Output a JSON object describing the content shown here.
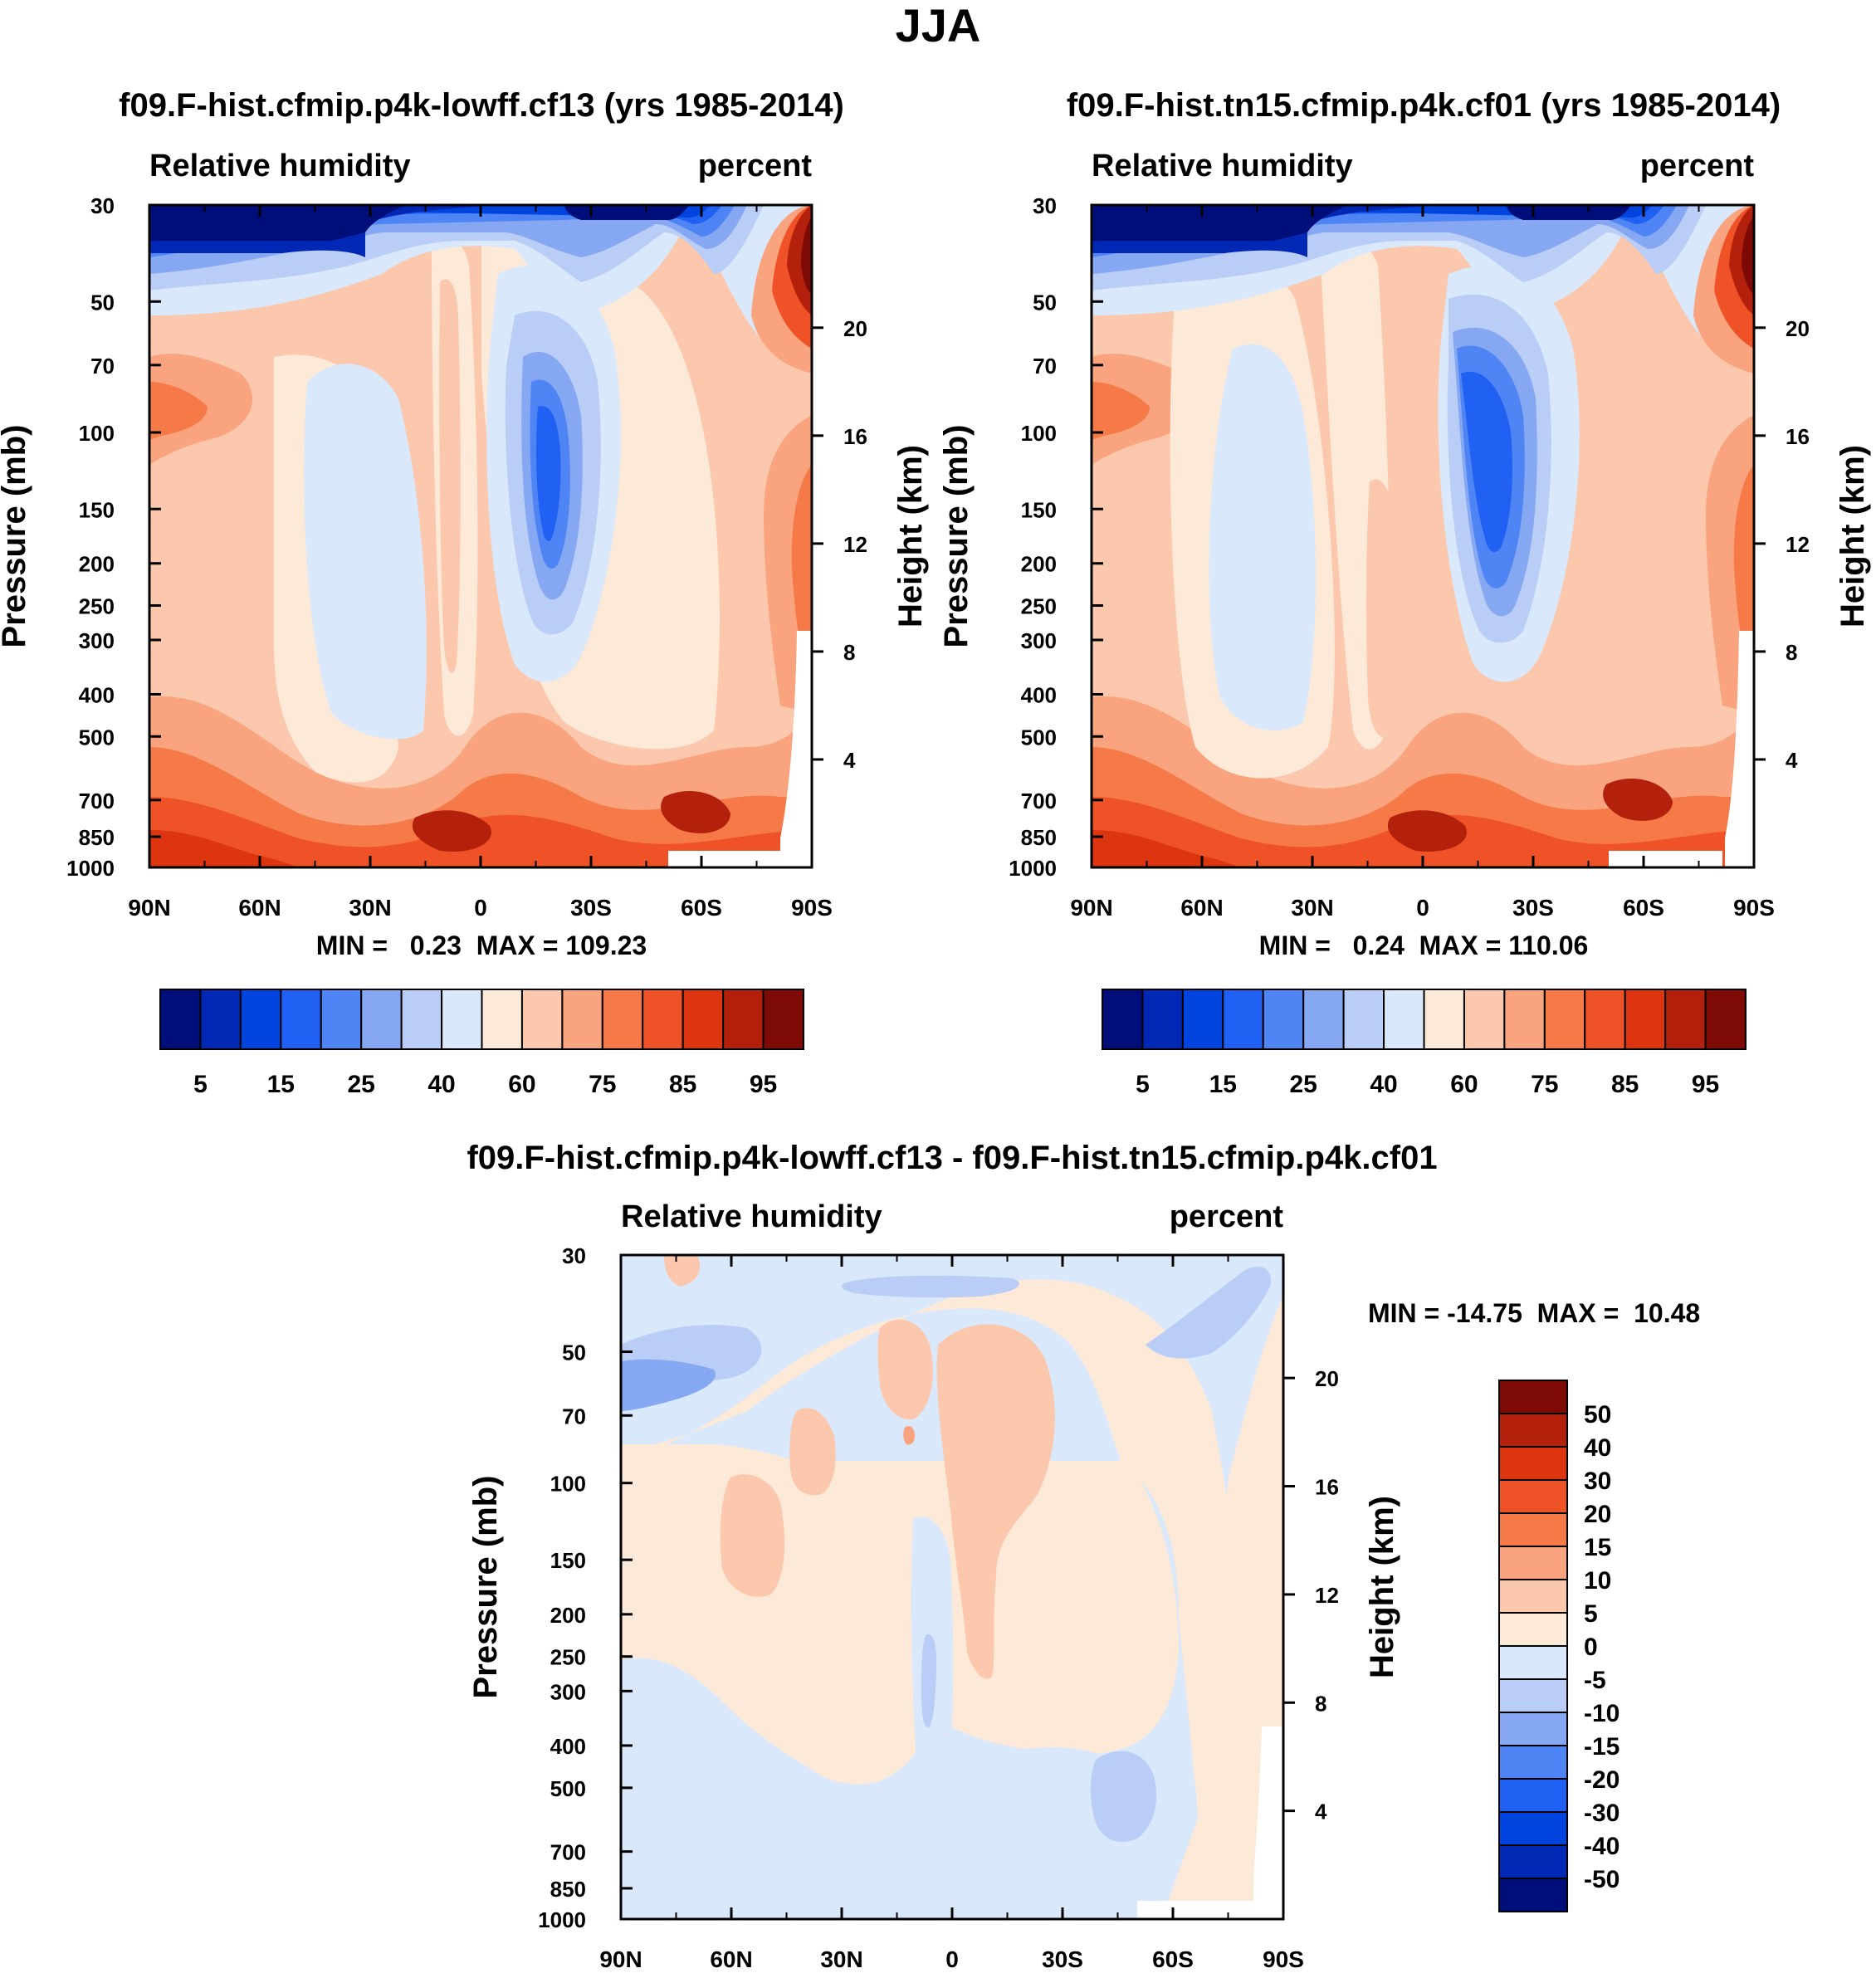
{
  "title": "JJA",
  "chart_data": [
    {
      "type": "heatmap",
      "title": "f09.F-hist.cfmip.p4k-lowff.cf13 (yrs 1985-2014)",
      "left_label": "Relative humidity",
      "right_label": "percent",
      "ylabel": "Pressure (mb)",
      "ylabel_right": "Height (km)",
      "x_ticks": [
        "90N",
        "60N",
        "30N",
        "0",
        "30S",
        "60S",
        "90S"
      ],
      "y_ticks": [
        "30",
        "50",
        "70",
        "100",
        "150",
        "200",
        "250",
        "300",
        "400",
        "500",
        "700",
        "850",
        "1000"
      ],
      "height_ticks": [
        "20",
        "16",
        "12",
        "8",
        "4"
      ],
      "stats": "MIN =   0.23  MAX = 109.23",
      "min": 0.23,
      "max": 109.23,
      "colorbar_labels": [
        "5",
        "15",
        "25",
        "40",
        "60",
        "75",
        "85",
        "95"
      ]
    },
    {
      "type": "heatmap",
      "title": "f09.F-hist.tn15.cfmip.p4k.cf01 (yrs 1985-2014)",
      "left_label": "Relative humidity",
      "right_label": "percent",
      "ylabel": "Pressure (mb)",
      "ylabel_right": "Height (km)",
      "x_ticks": [
        "90N",
        "60N",
        "30N",
        "0",
        "30S",
        "60S",
        "90S"
      ],
      "y_ticks": [
        "30",
        "50",
        "70",
        "100",
        "150",
        "200",
        "250",
        "300",
        "400",
        "500",
        "700",
        "850",
        "1000"
      ],
      "height_ticks": [
        "20",
        "16",
        "12",
        "8",
        "4"
      ],
      "stats": "MIN =   0.24  MAX = 110.06",
      "min": 0.24,
      "max": 110.06,
      "colorbar_labels": [
        "5",
        "15",
        "25",
        "40",
        "60",
        "75",
        "85",
        "95"
      ]
    },
    {
      "type": "heatmap",
      "title": "f09.F-hist.cfmip.p4k-lowff.cf13 - f09.F-hist.tn15.cfmip.p4k.cf01",
      "left_label": "Relative humidity",
      "right_label": "percent",
      "ylabel": "Pressure (mb)",
      "ylabel_right": "Height (km)",
      "x_ticks": [
        "90N",
        "60N",
        "30N",
        "0",
        "30S",
        "60S",
        "90S"
      ],
      "y_ticks": [
        "30",
        "50",
        "70",
        "100",
        "150",
        "200",
        "250",
        "300",
        "400",
        "500",
        "700",
        "850",
        "1000"
      ],
      "height_ticks": [
        "20",
        "16",
        "12",
        "8",
        "4"
      ],
      "stats": "MIN = -14.75  MAX =  10.48",
      "min": -14.75,
      "max": 10.48,
      "colorbar_labels": [
        "50",
        "40",
        "30",
        "20",
        "15",
        "10",
        "5",
        "0",
        "-5",
        "-10",
        "-15",
        "-20",
        "-30",
        "-40",
        "-50"
      ]
    }
  ],
  "colors": {
    "fill_scale": [
      "#000e7a",
      "#0028b4",
      "#0044e0",
      "#2060f2",
      "#4f84f4",
      "#86a8f2",
      "#b9cdf6",
      "#d9e8fb",
      "#fde9d7",
      "#fbc8ad",
      "#f9a47e",
      "#f57a47",
      "#f05228",
      "#dc3510",
      "#b3200b",
      "#7d0a04"
    ],
    "diff_scale": [
      "#7d0a04",
      "#b3200b",
      "#dc3510",
      "#f05228",
      "#f57a47",
      "#f9a47e",
      "#fbc8ad",
      "#fde9d7",
      "#d9e8fb",
      "#b9cdf6",
      "#86a8f2",
      "#4f84f4",
      "#2060f2",
      "#0044e0",
      "#0028b4",
      "#000e7a"
    ]
  }
}
